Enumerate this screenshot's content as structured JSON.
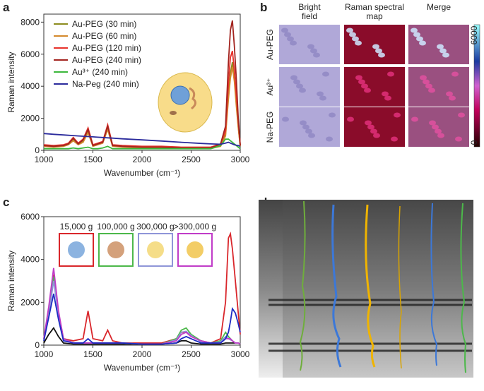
{
  "panel_labels": [
    "a",
    "b",
    "c",
    "d"
  ],
  "chart_data": [
    {
      "type": "line",
      "ylabel": "Raman intensity",
      "xlabel": "Wavenumber (cm⁻¹)",
      "xlim": [
        1000,
        3000
      ],
      "xticks": [
        1000,
        1500,
        2000,
        2500,
        3000
      ],
      "ylim": [
        0,
        8500
      ],
      "yticks": [
        0,
        2000,
        4000,
        6000,
        8000
      ],
      "legend": "upper left",
      "legend_style": "lines",
      "x": [
        1000,
        1100,
        1200,
        1250,
        1300,
        1350,
        1400,
        1450,
        1500,
        1550,
        1600,
        1650,
        1700,
        1800,
        2000,
        2200,
        2400,
        2600,
        2700,
        2800,
        2850,
        2880,
        2900,
        2920,
        2940,
        2960,
        2980,
        3000
      ],
      "series": [
        {
          "name": "Au-PEG (30 min)",
          "color": "#8c8c1e",
          "values": [
            300,
            250,
            300,
            400,
            700,
            400,
            600,
            1200,
            300,
            400,
            500,
            1400,
            300,
            250,
            200,
            200,
            150,
            150,
            150,
            300,
            1000,
            3500,
            4800,
            5500,
            4500,
            3000,
            1500,
            300
          ]
        },
        {
          "name": "Au-PEG (60 min)",
          "color": "#d4892c",
          "values": [
            250,
            200,
            250,
            350,
            600,
            350,
            500,
            1100,
            250,
            350,
            450,
            1300,
            250,
            200,
            150,
            150,
            120,
            120,
            120,
            250,
            900,
            3200,
            4500,
            5200,
            4300,
            2800,
            1400,
            250
          ]
        },
        {
          "name": "Au-PEG (120 min)",
          "color": "#e8322b",
          "values": [
            350,
            300,
            350,
            450,
            800,
            450,
            700,
            1400,
            350,
            450,
            550,
            1600,
            350,
            300,
            250,
            250,
            200,
            200,
            200,
            400,
            1200,
            4200,
            5800,
            6200,
            5000,
            3500,
            1800,
            350
          ]
        },
        {
          "name": "Au-PEG (240 min)",
          "color": "#a3241f",
          "values": [
            300,
            250,
            300,
            400,
            750,
            400,
            650,
            1300,
            300,
            400,
            500,
            1500,
            300,
            250,
            200,
            200,
            150,
            150,
            150,
            400,
            1500,
            5500,
            7500,
            8100,
            6500,
            4500,
            2000,
            300
          ]
        },
        {
          "name": "Au³⁺ (240 min)",
          "color": "#3cb83c",
          "values": [
            100,
            100,
            100,
            100,
            150,
            100,
            150,
            200,
            100,
            100,
            150,
            250,
            100,
            100,
            100,
            100,
            100,
            100,
            100,
            300,
            700,
            700,
            600,
            500,
            400,
            300,
            200,
            100
          ]
        },
        {
          "name": "Na-Peg (240 min)",
          "color": "#2b2b9c",
          "values": [
            1050,
            1000,
            960,
            940,
            920,
            900,
            880,
            860,
            840,
            820,
            800,
            780,
            760,
            720,
            650,
            580,
            500,
            430,
            400,
            380,
            450,
            500,
            450,
            400,
            350,
            320,
            300,
            250
          ]
        }
      ]
    },
    {
      "type": "line",
      "ylabel": "Raman intensity",
      "xlabel": "Wavenumber (cm⁻¹)",
      "xlim": [
        1000,
        3000
      ],
      "xticks": [
        1000,
        1500,
        2000,
        2500,
        3000
      ],
      "ylim": [
        0,
        6000
      ],
      "yticks": [
        0,
        2000,
        4000,
        6000
      ],
      "legend": "upper left",
      "legend_style": "boxes",
      "x": [
        1000,
        1050,
        1100,
        1150,
        1200,
        1300,
        1400,
        1450,
        1500,
        1600,
        1650,
        1700,
        1800,
        2000,
        2200,
        2350,
        2400,
        2450,
        2500,
        2600,
        2700,
        2800,
        2850,
        2880,
        2900,
        2920,
        2950,
        2980,
        3000
      ],
      "series": [
        {
          "color": "#111111",
          "values": [
            100,
            500,
            800,
            400,
            100,
            50,
            50,
            50,
            50,
            50,
            50,
            50,
            50,
            50,
            50,
            100,
            200,
            200,
            100,
            50,
            50,
            50,
            100,
            100,
            100,
            100,
            100,
            100,
            50
          ]
        },
        {
          "name": "15,000 g",
          "color": "#d9262b",
          "values": [
            300,
            1500,
            3300,
            1500,
            300,
            200,
            300,
            1600,
            300,
            200,
            700,
            200,
            100,
            100,
            100,
            300,
            600,
            600,
            400,
            200,
            100,
            300,
            2000,
            5000,
            5200,
            4500,
            3000,
            1500,
            500
          ]
        },
        {
          "name": "100,000 g",
          "color": "#4cb84a",
          "values": [
            300,
            1500,
            3200,
            1500,
            300,
            100,
            100,
            100,
            100,
            100,
            100,
            100,
            100,
            50,
            50,
            300,
            700,
            800,
            500,
            200,
            100,
            200,
            600,
            400,
            300,
            200,
            100,
            100,
            50
          ]
        },
        {
          "name": "300,000 g",
          "color": "#8f95d8",
          "values": [
            250,
            1400,
            3000,
            1400,
            250,
            100,
            100,
            100,
            100,
            100,
            100,
            100,
            100,
            50,
            50,
            250,
            600,
            650,
            450,
            150,
            100,
            150,
            400,
            300,
            250,
            200,
            100,
            100,
            50
          ]
        },
        {
          "name": ">300,000 g",
          "color": "#c03cc8",
          "values": [
            300,
            1800,
            3600,
            1600,
            300,
            100,
            100,
            100,
            100,
            100,
            100,
            100,
            100,
            50,
            50,
            200,
            500,
            600,
            400,
            200,
            100,
            100,
            300,
            300,
            300,
            200,
            100,
            100,
            50
          ]
        },
        {
          "color": "#1d2bc4",
          "values": [
            200,
            1300,
            2400,
            1200,
            200,
            100,
            100,
            300,
            100,
            100,
            100,
            100,
            100,
            50,
            50,
            100,
            300,
            400,
            300,
            100,
            100,
            100,
            300,
            600,
            1100,
            1700,
            1500,
            1000,
            600
          ]
        }
      ]
    }
  ],
  "microscopy": {
    "columns": [
      "Bright\nfield",
      "Raman spectral\nmap",
      "Merge"
    ],
    "rows": [
      "Au-PEG",
      "Au³⁺",
      "Na-PEG"
    ],
    "colorbar": [
      "6000",
      "0"
    ]
  }
}
